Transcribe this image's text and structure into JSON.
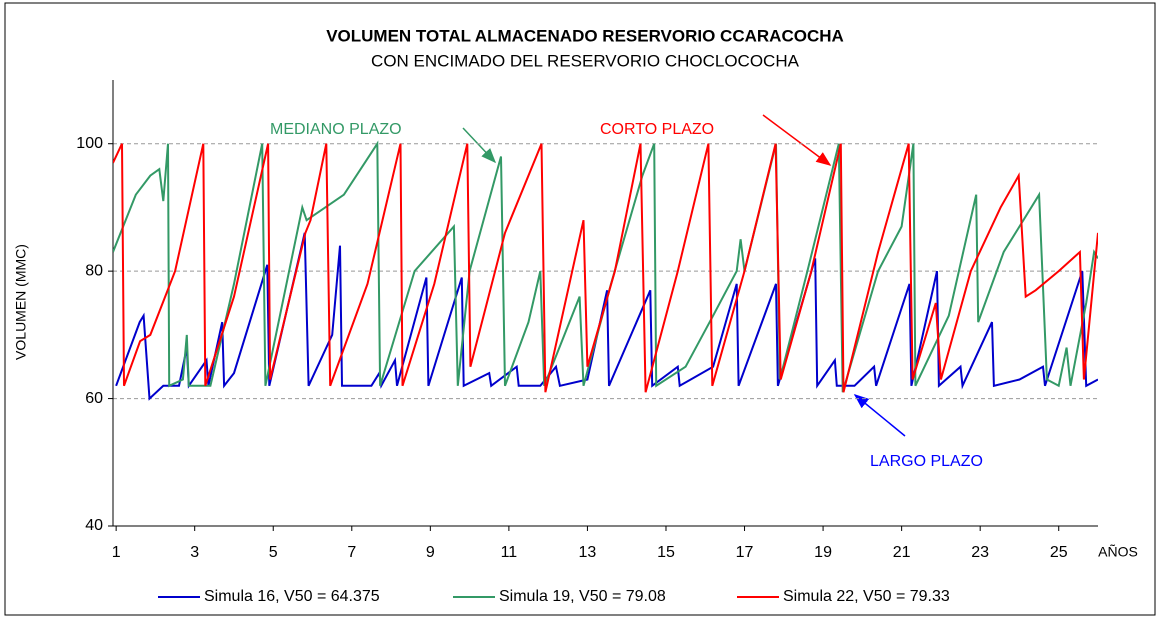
{
  "chart_data": {
    "type": "line",
    "title": "VOLUMEN TOTAL ALMACENADO RESERVORIO CCARACOCHA",
    "subtitle": "CON ENCIMADO DEL RESERVORIO CHOCLOCOCHA",
    "y_label": "VOLUMEN (MMC)",
    "x_label": "AÑOS",
    "xlim": [
      0.92,
      26
    ],
    "xticks": [
      1,
      3,
      5,
      7,
      9,
      11,
      13,
      15,
      17,
      19,
      21,
      23,
      25
    ],
    "ylim": [
      40,
      110
    ],
    "yticks": [
      40,
      60,
      80,
      100
    ],
    "grid": true,
    "legend": "bottom",
    "annotations": [
      {
        "text": "MEDIANO PLAZO",
        "color": "#339966"
      },
      {
        "text": "CORTO PLAZO",
        "color": "#ff0000"
      },
      {
        "text": "LARGO PLAZO",
        "color": "#0000ff"
      }
    ],
    "series": [
      {
        "name": "Simula 16, V50 = 64.375",
        "color": "#0000cc",
        "x": [
          1.0,
          1.6,
          1.7,
          1.85,
          2.2,
          2.6,
          2.8,
          2.85,
          3.3,
          3.35,
          3.7,
          3.75,
          4.0,
          4.85,
          4.9,
          5.8,
          5.9,
          6.5,
          6.7,
          6.75,
          7.0,
          7.5,
          7.7,
          7.75,
          8.1,
          8.15,
          8.9,
          8.95,
          9.8,
          9.85,
          10.5,
          10.55,
          11.2,
          11.25,
          11.8,
          12.2,
          12.3,
          13.0,
          13.5,
          13.55,
          14.6,
          14.65,
          15.3,
          15.35,
          16.2,
          16.8,
          16.85,
          17.8,
          17.85,
          18.8,
          18.85,
          19.3,
          19.35,
          19.8,
          20.3,
          20.35,
          21.2,
          21.25,
          21.9,
          21.95,
          22.5,
          22.55,
          23.3,
          23.35,
          24.0,
          24.6,
          24.65,
          25.6,
          25.7,
          26
        ],
        "values": [
          62,
          72,
          73,
          60,
          62,
          62,
          68,
          62,
          66,
          62,
          72,
          62,
          64,
          81,
          62,
          86,
          62,
          70,
          84,
          62,
          62,
          62,
          64,
          62,
          66,
          62,
          79,
          62,
          79,
          62,
          64,
          62,
          65,
          62,
          62,
          65,
          62,
          63,
          77,
          62,
          77,
          62,
          65,
          62,
          65,
          78,
          62,
          78,
          62,
          82,
          62,
          66,
          62,
          62,
          65,
          62,
          78,
          62,
          80,
          62,
          65,
          62,
          72,
          62,
          63,
          65,
          62,
          80,
          62,
          63
        ]
      },
      {
        "name": "Simula 19, V50 = 79.08",
        "color": "#339966",
        "x": [
          0.92,
          1.5,
          1.87,
          2.1,
          2.2,
          2.32,
          2.35,
          2.7,
          2.8,
          2.85,
          3.4,
          4.0,
          4.72,
          4.8,
          5.74,
          5.85,
          6.8,
          7.65,
          7.72,
          8.6,
          9.6,
          9.7,
          10.0,
          10.8,
          10.9,
          11.5,
          11.8,
          11.9,
          12.8,
          12.9,
          13.6,
          14.4,
          14.7,
          14.75,
          15.5,
          16.2,
          16.8,
          16.9,
          17.0,
          17.8,
          17.9,
          18.6,
          19.4,
          19.5,
          20.4,
          21.0,
          21.3,
          21.35,
          22.2,
          22.9,
          22.95,
          23.6,
          24.5,
          24.7,
          25.0,
          25.2,
          25.3,
          25.7,
          25.9,
          26
        ],
        "values": [
          83,
          92,
          95,
          96,
          91,
          100,
          62,
          63,
          70,
          62,
          62,
          78,
          100,
          62,
          90,
          88,
          92,
          100,
          62,
          80,
          87,
          62,
          80,
          98,
          62,
          72,
          80,
          62,
          76,
          62,
          78,
          95,
          100,
          62,
          65,
          73,
          80,
          85,
          80,
          100,
          63,
          80,
          100,
          61,
          80,
          87,
          100,
          62,
          73,
          92,
          72,
          83,
          92,
          63,
          62,
          68,
          62,
          75,
          83,
          82
        ]
      },
      {
        "name": "Simula 22, V50 = 79.33",
        "color": "#ff0000",
        "x": [
          0.92,
          1.15,
          1.2,
          1.61,
          1.87,
          2.5,
          3.22,
          3.27,
          4.0,
          4.87,
          4.92,
          5.82,
          5.95,
          6.35,
          6.45,
          7.4,
          8.24,
          8.29,
          9.1,
          9.94,
          10.02,
          10.9,
          11.83,
          11.93,
          12.9,
          13.0,
          13.7,
          14.35,
          14.48,
          15.3,
          16.08,
          16.18,
          17.0,
          17.79,
          17.92,
          18.7,
          19.45,
          19.52,
          20.4,
          21.18,
          21.28,
          21.87,
          22.0,
          22.76,
          23.52,
          23.98,
          24.16,
          24.41,
          25.0,
          25.54,
          25.64,
          26
        ],
        "values": [
          97,
          100,
          62,
          69,
          70,
          80,
          100,
          62,
          76,
          100,
          63,
          86,
          88,
          100,
          62,
          78,
          100,
          62,
          78,
          100,
          65,
          86,
          100,
          61,
          88,
          65,
          80,
          100,
          61,
          80,
          100,
          62,
          80,
          100,
          63,
          80,
          100,
          61,
          83,
          100,
          63,
          75,
          63,
          80,
          90,
          95,
          76,
          77,
          80,
          83,
          63,
          86
        ]
      }
    ]
  }
}
